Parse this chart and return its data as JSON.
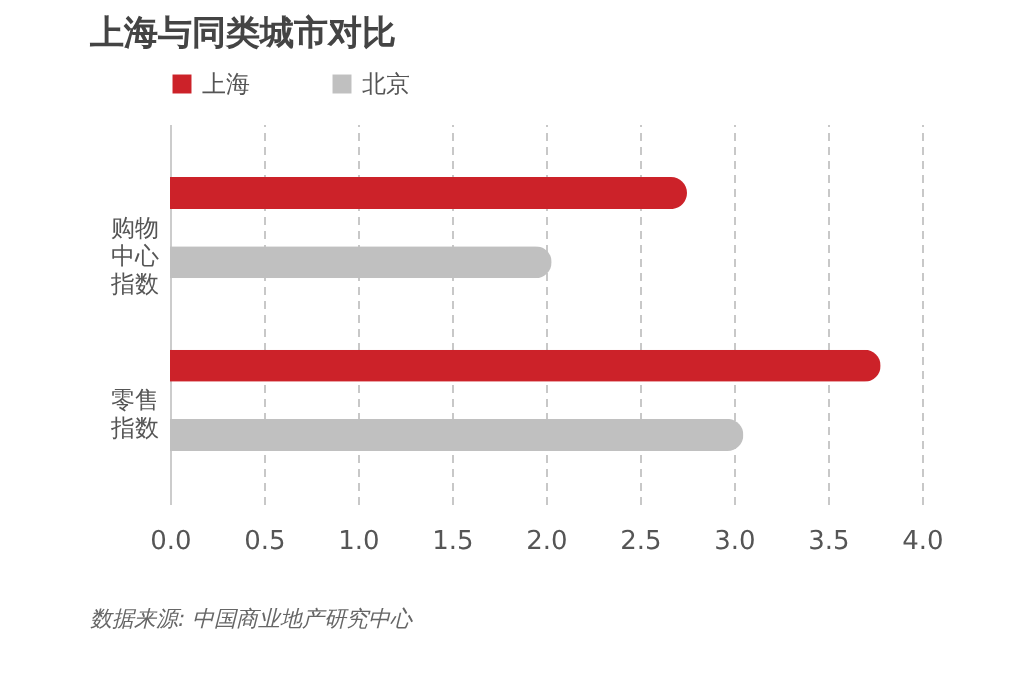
{
  "chart_data": {
    "type": "bar",
    "orientation": "horizontal",
    "title": "上海与同类城市对比",
    "categories": [
      "购物中心指数",
      "零售指数"
    ],
    "series": [
      {
        "name": "上海",
        "color": "#cc2229",
        "values": [
          2.75,
          3.78
        ]
      },
      {
        "name": "北京",
        "color": "#c0c0c0",
        "values": [
          2.03,
          3.05
        ]
      }
    ],
    "xlim": [
      0,
      4
    ],
    "xticks": [
      {
        "value": 0,
        "label": "0.0"
      },
      0.5,
      {
        "value": 1,
        "label": "1.0"
      },
      1.5,
      {
        "value": 2,
        "label": "2.0"
      },
      2.5,
      {
        "value": 3,
        "label": "3.0"
      },
      3.5,
      {
        "value": 4,
        "label": "4.0"
      }
    ],
    "grid": "x",
    "legend": "top left",
    "annotations": [
      "数据来源: 中国商业地产研究中心"
    ]
  }
}
